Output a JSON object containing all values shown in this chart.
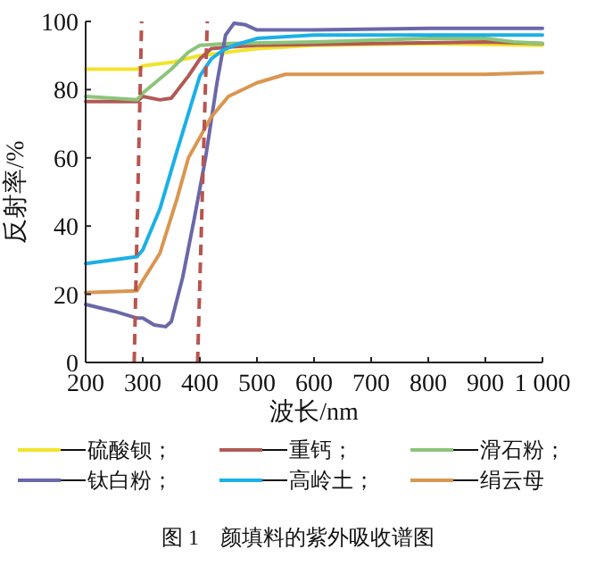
{
  "chart_data": {
    "type": "line",
    "xlabel": "波长/nm",
    "ylabel": "反射率/%",
    "xlim": [
      200,
      1000
    ],
    "ylim": [
      0,
      100
    ],
    "xticks": [
      200,
      300,
      400,
      500,
      600,
      700,
      800,
      900,
      {
        "value": 1000,
        "label": "1 000"
      }
    ],
    "yticks": [
      0,
      20,
      40,
      60,
      80,
      100
    ],
    "grid": false,
    "legend": "bottom",
    "marker": "none",
    "line_style": "solid",
    "annotations": [
      "图 1　颜填料的紫外吸收谱图"
    ],
    "series": [
      {
        "name": "硫酸钡；",
        "color": "#f2e32c",
        "x": [
          200,
          290,
          300,
          350,
          400,
          450,
          500,
          600,
          800,
          1000
        ],
        "values": [
          86,
          86,
          87,
          88,
          90,
          91,
          92,
          93,
          93.5,
          93
        ]
      },
      {
        "name": "重钙；",
        "color": "#b05a55",
        "x": [
          200,
          290,
          300,
          330,
          350,
          380,
          400,
          420,
          450,
          500,
          700,
          900,
          1000
        ],
        "values": [
          76.5,
          76.5,
          78,
          77,
          77.5,
          84,
          89,
          92,
          92.5,
          93,
          93.5,
          94,
          93.5
        ]
      },
      {
        "name": "滑石粉；",
        "color": "#8cc47a",
        "x": [
          200,
          290,
          300,
          350,
          380,
          400,
          450,
          600,
          800,
          900,
          950,
          1000
        ],
        "values": [
          78,
          77,
          79,
          86,
          91,
          93,
          93.5,
          94,
          95,
          95,
          94,
          93.5
        ]
      },
      {
        "name": "钛白粉；",
        "color": "#6a68a8",
        "x": [
          200,
          250,
          290,
          300,
          320,
          340,
          350,
          370,
          390,
          410,
          430,
          445,
          460,
          480,
          500,
          600,
          800,
          1000
        ],
        "values": [
          17,
          15,
          13,
          13,
          11,
          10.5,
          12,
          25,
          42,
          60,
          82,
          96,
          99.5,
          99,
          97.5,
          97.5,
          98,
          98
        ]
      },
      {
        "name": "高岭土；",
        "color": "#1ab0e6",
        "x": [
          200,
          290,
          300,
          330,
          360,
          380,
          400,
          420,
          440,
          460,
          500,
          600,
          800,
          1000
        ],
        "values": [
          29,
          31,
          33,
          45,
          62,
          73,
          84,
          89,
          91.5,
          93,
          95,
          96,
          96,
          96
        ]
      },
      {
        "name": "绢云母",
        "color": "#d99650",
        "x": [
          200,
          290,
          300,
          330,
          360,
          380,
          400,
          420,
          450,
          500,
          550,
          600,
          800,
          900,
          1000
        ],
        "values": [
          20.5,
          21,
          24,
          32,
          48,
          60,
          66,
          72,
          78,
          82,
          84.5,
          84.5,
          84.5,
          84.5,
          85
        ]
      },
      {
        "color": "#b8544f",
        "line_style": "dashed",
        "x": [
          285,
          298
        ],
        "values": [
          0,
          100
        ]
      },
      {
        "color": "#b8544f",
        "line_style": "dashed",
        "x": [
          396,
          413
        ],
        "values": [
          0,
          100
        ]
      }
    ]
  }
}
